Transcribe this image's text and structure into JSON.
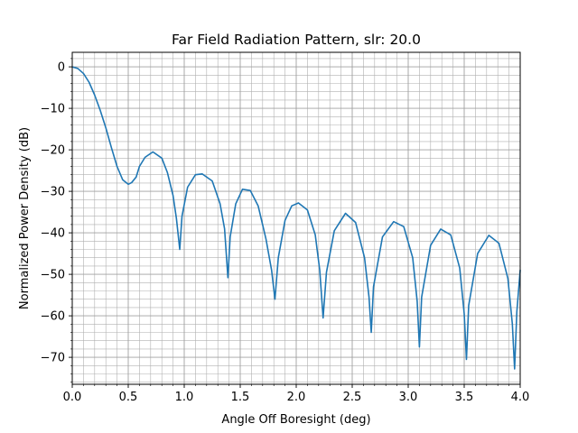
{
  "chart_data": {
    "type": "line",
    "title": "Far Field Radiation Pattern, slr: 20.0",
    "xlabel": "Angle Off Boresight (deg)",
    "ylabel": "Normalized Power Density (dB)",
    "xlim": [
      0.0,
      4.0
    ],
    "ylim": [
      -76.5,
      3.5
    ],
    "xticks": [
      0.0,
      0.5,
      1.0,
      1.5,
      2.0,
      2.5,
      3.0,
      3.5,
      4.0
    ],
    "xtick_labels": [
      "0.0",
      "0.5",
      "1.0",
      "1.5",
      "2.0",
      "2.5",
      "3.0",
      "3.5",
      "4.0"
    ],
    "yticks": [
      0,
      -10,
      -20,
      -30,
      -40,
      -50,
      -60,
      -70
    ],
    "ytick_labels": [
      "0",
      "−10",
      "−20",
      "−30",
      "−40",
      "−50",
      "−60",
      "−70"
    ],
    "grid": true,
    "grid_minor": true,
    "series": [
      {
        "color": "#1f77b4",
        "x": [
          0.0,
          0.05,
          0.1,
          0.15,
          0.2,
          0.25,
          0.3,
          0.35,
          0.4,
          0.45,
          0.5,
          0.53,
          0.56,
          0.57,
          0.6,
          0.65,
          0.72,
          0.8,
          0.85,
          0.9,
          0.93,
          0.96,
          0.98,
          1.03,
          1.1,
          1.16,
          1.25,
          1.32,
          1.36,
          1.39,
          1.41,
          1.46,
          1.52,
          1.59,
          1.66,
          1.73,
          1.78,
          1.81,
          1.84,
          1.9,
          1.96,
          2.02,
          2.1,
          2.17,
          2.21,
          2.24,
          2.27,
          2.34,
          2.44,
          2.53,
          2.61,
          2.65,
          2.67,
          2.69,
          2.77,
          2.87,
          2.96,
          3.04,
          3.08,
          3.1,
          3.12,
          3.2,
          3.29,
          3.38,
          3.46,
          3.5,
          3.52,
          3.54,
          3.62,
          3.72,
          3.81,
          3.89,
          3.93,
          3.95,
          3.97,
          4.0
        ],
        "y": [
          0.0,
          -0.4,
          -1.6,
          -3.7,
          -6.8,
          -10.5,
          -14.7,
          -19.5,
          -24.0,
          -27.2,
          -28.3,
          -27.9,
          -26.9,
          -26.6,
          -24.0,
          -21.8,
          -20.5,
          -22.0,
          -25.5,
          -31.0,
          -36.5,
          -44.0,
          -36.0,
          -29.0,
          -26.0,
          -25.8,
          -27.5,
          -33.0,
          -39.0,
          -50.8,
          -41.0,
          -33.0,
          -29.5,
          -29.8,
          -33.5,
          -41.5,
          -49.0,
          -56.0,
          -46.0,
          -37.0,
          -33.5,
          -32.8,
          -34.5,
          -40.5,
          -49.0,
          -60.5,
          -49.5,
          -39.5,
          -35.3,
          -37.5,
          -46.0,
          -55.5,
          -64.0,
          -53.0,
          -41.0,
          -37.3,
          -38.5,
          -46.0,
          -56.5,
          -67.5,
          -55.5,
          -43.0,
          -39.1,
          -40.5,
          -48.5,
          -59.5,
          -70.5,
          -57.5,
          -45.0,
          -40.6,
          -42.5,
          -51.0,
          -62.0,
          -72.8,
          -59.0,
          -49.0
        ]
      }
    ]
  }
}
